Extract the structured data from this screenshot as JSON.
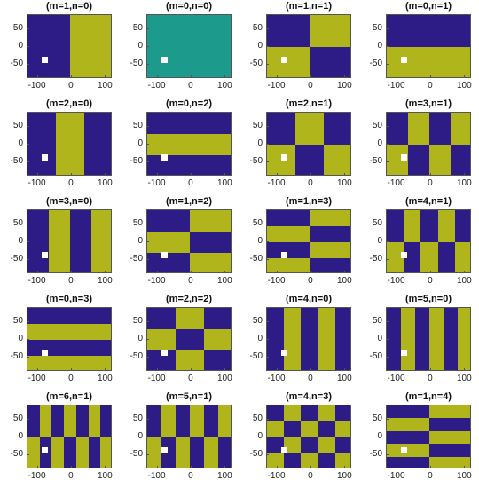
{
  "colors": {
    "dark": "#2e1c86",
    "light": "#b1b51c",
    "uniform": "#1c9a8b",
    "marker": "#ffffff"
  },
  "chart_data": [
    {
      "type": "heatmap",
      "title": "(m=1,n=0)",
      "m": 1,
      "n": 0,
      "xlim": [
        -130,
        120
      ],
      "ylim": [
        -90,
        90
      ],
      "xticks": [
        -100,
        0,
        100
      ],
      "yticks": [
        50,
        0,
        -50
      ],
      "marker": [
        -80,
        -35
      ]
    },
    {
      "type": "heatmap",
      "title": "(m=0,n=0)",
      "m": 0,
      "n": 0,
      "xlim": [
        -130,
        120
      ],
      "ylim": [
        -90,
        90
      ],
      "xticks": [
        -100,
        0,
        100
      ],
      "yticks": [
        50,
        0,
        -50
      ],
      "marker": [
        -80,
        -35
      ]
    },
    {
      "type": "heatmap",
      "title": "(m=1,n=1)",
      "m": 1,
      "n": 1,
      "xlim": [
        -130,
        120
      ],
      "ylim": [
        -90,
        90
      ],
      "xticks": [
        -100,
        0,
        100
      ],
      "yticks": [
        50,
        0,
        -50
      ],
      "marker": [
        -80,
        -35
      ]
    },
    {
      "type": "heatmap",
      "title": "(m=0,n=1)",
      "m": 0,
      "n": 1,
      "xlim": [
        -130,
        120
      ],
      "ylim": [
        -90,
        90
      ],
      "xticks": [
        -100,
        0,
        100
      ],
      "yticks": [
        50,
        0,
        -50
      ],
      "marker": [
        -80,
        -35
      ]
    },
    {
      "type": "heatmap",
      "title": "(m=2,n=0)",
      "m": 2,
      "n": 0,
      "xlim": [
        -130,
        120
      ],
      "ylim": [
        -90,
        90
      ],
      "xticks": [
        -100,
        0,
        100
      ],
      "yticks": [
        50,
        0,
        -50
      ],
      "marker": [
        -80,
        -35
      ]
    },
    {
      "type": "heatmap",
      "title": "(m=0,n=2)",
      "m": 0,
      "n": 2,
      "xlim": [
        -130,
        120
      ],
      "ylim": [
        -90,
        90
      ],
      "xticks": [
        -100,
        0,
        100
      ],
      "yticks": [
        50,
        0,
        -50
      ],
      "marker": [
        -80,
        -35
      ]
    },
    {
      "type": "heatmap",
      "title": "(m=2,n=1)",
      "m": 2,
      "n": 1,
      "xlim": [
        -130,
        120
      ],
      "ylim": [
        -90,
        90
      ],
      "xticks": [
        -100,
        0,
        100
      ],
      "yticks": [
        50,
        0,
        -50
      ],
      "marker": [
        -80,
        -35
      ]
    },
    {
      "type": "heatmap",
      "title": "(m=3,n=1)",
      "m": 3,
      "n": 1,
      "xlim": [
        -130,
        120
      ],
      "ylim": [
        -90,
        90
      ],
      "xticks": [
        -100,
        0,
        100
      ],
      "yticks": [
        50,
        0,
        -50
      ],
      "marker": [
        -80,
        -35
      ]
    },
    {
      "type": "heatmap",
      "title": "(m=3,n=0)",
      "m": 3,
      "n": 0,
      "xlim": [
        -130,
        120
      ],
      "ylim": [
        -90,
        90
      ],
      "xticks": [
        -100,
        0,
        100
      ],
      "yticks": [
        50,
        0,
        -50
      ],
      "marker": [
        -80,
        -35
      ]
    },
    {
      "type": "heatmap",
      "title": "(m=1,n=2)",
      "m": 1,
      "n": 2,
      "xlim": [
        -130,
        120
      ],
      "ylim": [
        -90,
        90
      ],
      "xticks": [
        -100,
        0,
        100
      ],
      "yticks": [
        50,
        0,
        -50
      ],
      "marker": [
        -80,
        -35
      ]
    },
    {
      "type": "heatmap",
      "title": "(m=1,n=3)",
      "m": 1,
      "n": 3,
      "xlim": [
        -130,
        120
      ],
      "ylim": [
        -90,
        90
      ],
      "xticks": [
        -100,
        0,
        100
      ],
      "yticks": [
        50,
        0,
        -50
      ],
      "marker": [
        -80,
        -35
      ]
    },
    {
      "type": "heatmap",
      "title": "(m=4,n=1)",
      "m": 4,
      "n": 1,
      "xlim": [
        -130,
        120
      ],
      "ylim": [
        -90,
        90
      ],
      "xticks": [
        -100,
        0,
        100
      ],
      "yticks": [
        50,
        0,
        -50
      ],
      "marker": [
        -80,
        -35
      ]
    },
    {
      "type": "heatmap",
      "title": "(m=0,n=3)",
      "m": 0,
      "n": 3,
      "xlim": [
        -130,
        120
      ],
      "ylim": [
        -90,
        90
      ],
      "xticks": [
        -100,
        0,
        100
      ],
      "yticks": [
        50,
        0,
        -50
      ],
      "marker": [
        -80,
        -35
      ]
    },
    {
      "type": "heatmap",
      "title": "(m=2,n=2)",
      "m": 2,
      "n": 2,
      "xlim": [
        -130,
        120
      ],
      "ylim": [
        -90,
        90
      ],
      "xticks": [
        -100,
        0,
        100
      ],
      "yticks": [
        50,
        0,
        -50
      ],
      "marker": [
        -80,
        -35
      ]
    },
    {
      "type": "heatmap",
      "title": "(m=4,n=0)",
      "m": 4,
      "n": 0,
      "xlim": [
        -130,
        120
      ],
      "ylim": [
        -90,
        90
      ],
      "xticks": [
        -100,
        0,
        100
      ],
      "yticks": [
        50,
        0,
        -50
      ],
      "marker": [
        -80,
        -35
      ]
    },
    {
      "type": "heatmap",
      "title": "(m=5,n=0)",
      "m": 5,
      "n": 0,
      "xlim": [
        -130,
        120
      ],
      "ylim": [
        -90,
        90
      ],
      "xticks": [
        -100,
        0,
        100
      ],
      "yticks": [
        50,
        0,
        -50
      ],
      "marker": [
        -80,
        -35
      ]
    },
    {
      "type": "heatmap",
      "title": "(m=6,n=1)",
      "m": 6,
      "n": 1,
      "xlim": [
        -130,
        120
      ],
      "ylim": [
        -90,
        90
      ],
      "xticks": [
        -100,
        0,
        100
      ],
      "yticks": [
        50,
        0,
        -50
      ],
      "marker": [
        -80,
        -35
      ]
    },
    {
      "type": "heatmap",
      "title": "(m=5,n=1)",
      "m": 5,
      "n": 1,
      "xlim": [
        -130,
        120
      ],
      "ylim": [
        -90,
        90
      ],
      "xticks": [
        -100,
        0,
        100
      ],
      "yticks": [
        50,
        0,
        -50
      ],
      "marker": [
        -80,
        -35
      ]
    },
    {
      "type": "heatmap",
      "title": "(m=4,n=3)",
      "m": 4,
      "n": 3,
      "xlim": [
        -130,
        120
      ],
      "ylim": [
        -90,
        90
      ],
      "xticks": [
        -100,
        0,
        100
      ],
      "yticks": [
        50,
        0,
        -50
      ],
      "marker": [
        -80,
        -35
      ]
    },
    {
      "type": "heatmap",
      "title": "(m=1,n=4)",
      "m": 1,
      "n": 4,
      "xlim": [
        -130,
        120
      ],
      "ylim": [
        -90,
        90
      ],
      "xticks": [
        -100,
        0,
        100
      ],
      "yticks": [
        50,
        0,
        -50
      ],
      "marker": [
        -80,
        -35
      ]
    }
  ]
}
